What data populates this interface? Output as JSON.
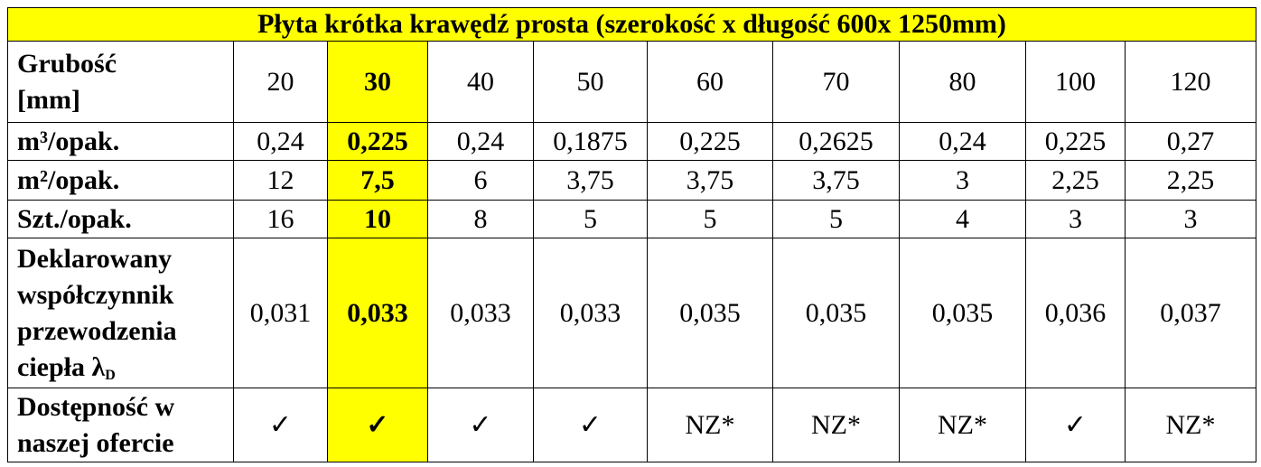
{
  "table": {
    "title": "Płyta krótka krawędź prosta (szerokość x długość 600x 1250mm)",
    "highlight": {
      "column": 1,
      "color": "#ffff00"
    },
    "rows": [
      {
        "label": [
          "Grubość",
          "[mm]"
        ],
        "values": [
          "20",
          "30",
          "40",
          "50",
          "60",
          "70",
          "80",
          "100",
          "120"
        ]
      },
      {
        "label": [
          "m³/opak."
        ],
        "values": [
          "0,24",
          "0,225",
          "0,24",
          "0,1875",
          "0,225",
          "0,2625",
          "0,24",
          "0,225",
          "0,27"
        ]
      },
      {
        "label": [
          "m²/opak."
        ],
        "values": [
          "12",
          "7,5",
          "6",
          "3,75",
          "3,75",
          "3,75",
          "3",
          "2,25",
          "2,25"
        ]
      },
      {
        "label": [
          "Szt./opak."
        ],
        "values": [
          "16",
          "10",
          "8",
          "5",
          "5",
          "5",
          "4",
          "3",
          "3"
        ]
      },
      {
        "label": [
          "Deklarowany",
          "współczynnik",
          "przewodzenia",
          "ciepła λ"
        ],
        "label_sub": "D",
        "values": [
          "0,031",
          "0,033",
          "0,033",
          "0,033",
          "0,035",
          "0,035",
          "0,035",
          "0,036",
          "0,037"
        ]
      },
      {
        "label": [
          "Dostępność w",
          "naszej ofercie"
        ],
        "values": [
          "✓",
          "✓",
          "✓",
          "✓",
          "NZ*",
          "NZ*",
          "NZ*",
          "✓",
          "NZ*"
        ]
      }
    ]
  }
}
